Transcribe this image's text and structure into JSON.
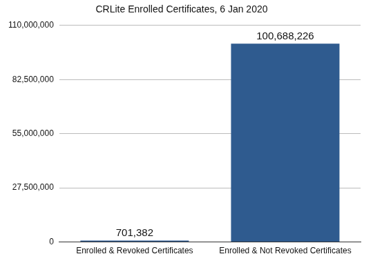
{
  "chart_data": {
    "type": "bar",
    "title": "CRLite Enrolled Certificates, 6 Jan 2020",
    "categories": [
      "Enrolled & Revoked Certificates",
      "Enrolled & Not Revoked Certificates"
    ],
    "values": [
      701382,
      100688226
    ],
    "value_labels": [
      "701,382",
      "100,688,226"
    ],
    "data_labels": true,
    "color": "#2f5b8f",
    "ylim": [
      0,
      110000000
    ],
    "yticks": [
      0,
      {
        "value": 27500000,
        "label": "27,500,000"
      },
      {
        "value": 55000000,
        "label": "55,000,000"
      },
      {
        "value": 82500000,
        "label": "82,500,000"
      },
      {
        "value": 110000000,
        "label": "110,000,000"
      }
    ],
    "grid": true
  }
}
